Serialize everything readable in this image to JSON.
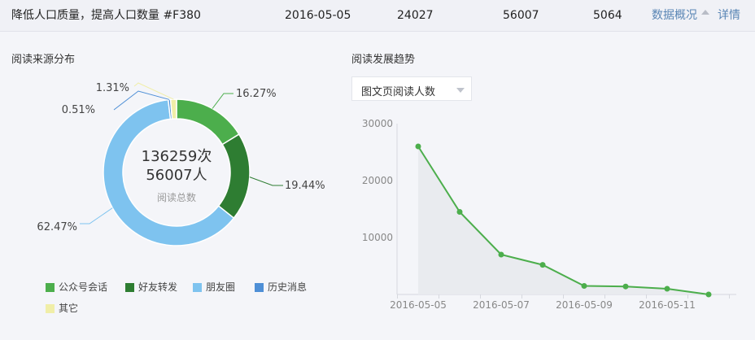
{
  "top_row": {
    "title": "降低人口质量，提高人口数量 #F380",
    "date": "2016-05-05",
    "value_1": "24027",
    "value_2": "56007",
    "value_3": "5064",
    "overview_link": "数据概况",
    "detail_link": "详情"
  },
  "source_panel": {
    "title": "阅读来源分布",
    "center_primary": "136259次",
    "center_secondary": "56007人",
    "center_caption": "阅读总数",
    "colors": {
      "公众号会话": "#4cae4c",
      "好友转发": "#2e7d32",
      "朋友圈": "#7ec3ef",
      "历史消息": "#4e8fd6",
      "其它": "#f0eea8"
    }
  },
  "chart_data": [
    {
      "type": "pie",
      "variant": "donut",
      "slices": [
        {
          "label": "公众号会话",
          "value": 16.27,
          "display": "16.27%"
        },
        {
          "label": "好友转发",
          "value": 19.44,
          "display": "19.44%"
        },
        {
          "label": "朋友圈",
          "value": 62.47,
          "display": "62.47%"
        },
        {
          "label": "历史消息",
          "value": 0.51,
          "display": "0.51%"
        },
        {
          "label": "其它",
          "value": 1.31,
          "display": "1.31%"
        }
      ],
      "legend": [
        "公众号会话",
        "好友转发",
        "朋友圈",
        "历史消息",
        "其它"
      ],
      "legend_position": "bottom-left"
    },
    {
      "type": "line",
      "title": "阅读发展趋势",
      "x": [
        "2016-05-05",
        "2016-05-06",
        "2016-05-07",
        "2016-05-08",
        "2016-05-09",
        "2016-05-10",
        "2016-05-11",
        "2016-05-12"
      ],
      "x_tick_labels": [
        "2016-05-05",
        "2016-05-07",
        "2016-05-09",
        "2016-05-11"
      ],
      "y": [
        26000,
        14500,
        7000,
        5200,
        1500,
        1400,
        1000,
        0
      ],
      "yticks": [
        10000,
        20000,
        30000
      ],
      "ylim": [
        0,
        30000
      ],
      "color": "#4cae4c",
      "area": true,
      "grid": false,
      "metric_selector": "图文页阅读人数"
    }
  ]
}
